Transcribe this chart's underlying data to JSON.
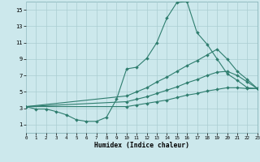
{
  "xlabel": "Humidex (Indice chaleur)",
  "bg_color": "#cce8ec",
  "grid_color": "#aacdd2",
  "line_color": "#2e7d6e",
  "xlim": [
    0,
    23
  ],
  "ylim": [
    0,
    16
  ],
  "xticks": [
    0,
    1,
    2,
    3,
    4,
    5,
    6,
    7,
    8,
    9,
    10,
    11,
    12,
    13,
    14,
    15,
    16,
    17,
    18,
    19,
    20,
    21,
    22,
    23
  ],
  "yticks": [
    1,
    3,
    5,
    7,
    9,
    11,
    13,
    15
  ],
  "main_x": [
    0,
    1,
    2,
    3,
    4,
    5,
    6,
    7,
    8,
    9,
    10,
    11,
    12,
    13,
    14,
    15,
    16,
    17,
    18,
    19,
    20,
    21,
    22,
    23
  ],
  "main_y": [
    3.2,
    2.9,
    2.9,
    2.6,
    2.2,
    1.6,
    1.4,
    1.4,
    1.9,
    4.1,
    7.8,
    8.0,
    9.1,
    11.0,
    14.0,
    15.9,
    16.0,
    12.2,
    10.8,
    9.0,
    7.2,
    6.4,
    5.5,
    5.4
  ],
  "fan1_x": [
    0,
    10,
    11,
    12,
    13,
    14,
    15,
    16,
    17,
    18,
    19,
    20,
    21,
    22,
    23
  ],
  "fan1_y": [
    3.2,
    4.5,
    5.0,
    5.5,
    6.2,
    6.8,
    7.5,
    8.2,
    8.8,
    9.5,
    10.2,
    9.0,
    7.5,
    6.5,
    5.4
  ],
  "fan2_x": [
    0,
    10,
    11,
    12,
    13,
    14,
    15,
    16,
    17,
    18,
    19,
    20,
    21,
    22,
    23
  ],
  "fan2_y": [
    3.2,
    3.8,
    4.1,
    4.4,
    4.8,
    5.2,
    5.6,
    6.1,
    6.5,
    7.0,
    7.4,
    7.5,
    7.0,
    6.2,
    5.4
  ],
  "fan3_x": [
    0,
    10,
    11,
    12,
    13,
    14,
    15,
    16,
    17,
    18,
    19,
    20,
    21,
    22,
    23
  ],
  "fan3_y": [
    3.2,
    3.2,
    3.4,
    3.6,
    3.8,
    4.0,
    4.3,
    4.6,
    4.8,
    5.1,
    5.3,
    5.5,
    5.5,
    5.4,
    5.4
  ]
}
